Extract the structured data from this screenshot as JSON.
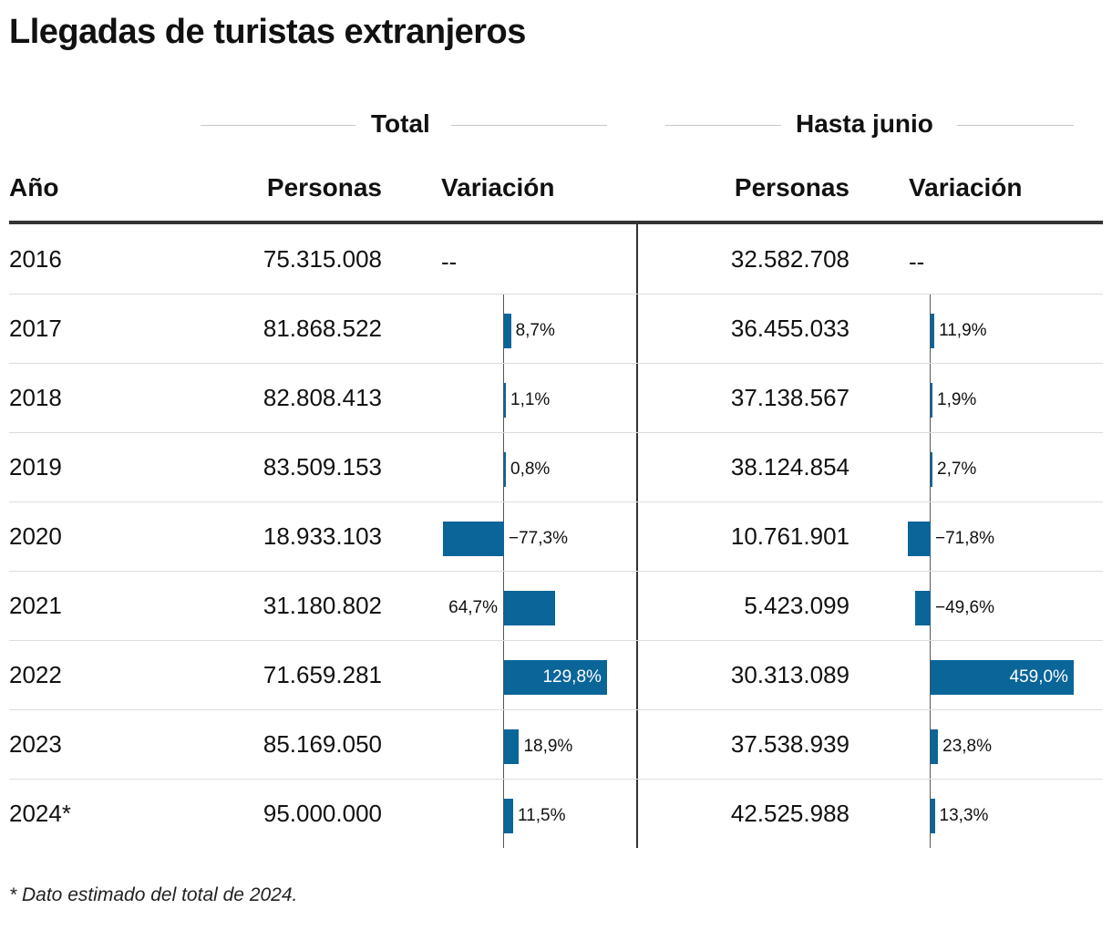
{
  "title": "Llegadas de turistas extranjeros",
  "groups": {
    "total": "Total",
    "junio": "Hasta junio"
  },
  "headers": {
    "year": "Año",
    "personas_total": "Personas",
    "variacion_total": "Variación",
    "personas_junio": "Personas",
    "variacion_junio": "Variación"
  },
  "footnote": "* Dato estimado del total de 2024.",
  "colors": {
    "bar": "#0a6599"
  },
  "chart_data": {
    "type": "table",
    "title": "Llegadas de turistas extranjeros",
    "rows": [
      {
        "year": "2016",
        "total": "75.315.008",
        "var_total": null,
        "var_total_label": "--",
        "junio": "32.582.708",
        "var_junio": null,
        "var_junio_label": "--"
      },
      {
        "year": "2017",
        "total": "81.868.522",
        "var_total": 8.7,
        "var_total_label": "8,7%",
        "junio": "36.455.033",
        "var_junio": 11.9,
        "var_junio_label": "11,9%"
      },
      {
        "year": "2018",
        "total": "82.808.413",
        "var_total": 1.1,
        "var_total_label": "1,1%",
        "junio": "37.138.567",
        "var_junio": 1.9,
        "var_junio_label": "1,9%"
      },
      {
        "year": "2019",
        "total": "83.509.153",
        "var_total": 0.8,
        "var_total_label": "0,8%",
        "junio": "38.124.854",
        "var_junio": 2.7,
        "var_junio_label": "2,7%"
      },
      {
        "year": "2020",
        "total": "18.933.103",
        "var_total": -77.3,
        "var_total_label": "−77,3%",
        "junio": "10.761.901",
        "var_junio": -71.8,
        "var_junio_label": "−71,8%"
      },
      {
        "year": "2021",
        "total": "31.180.802",
        "var_total": 64.7,
        "var_total_label": "64,7%",
        "junio": "5.423.099",
        "var_junio": -49.6,
        "var_junio_label": "−49,6%"
      },
      {
        "year": "2022",
        "total": "71.659.281",
        "var_total": 129.8,
        "var_total_label": "129,8%",
        "junio": "30.313.089",
        "var_junio": 459.0,
        "var_junio_label": "459,0%"
      },
      {
        "year": "2023",
        "total": "85.169.050",
        "var_total": 18.9,
        "var_total_label": "18,9%",
        "junio": "37.538.939",
        "var_junio": 23.8,
        "var_junio_label": "23,8%"
      },
      {
        "year": "2024*",
        "total": "95.000.000",
        "var_total": 11.5,
        "var_total_label": "11,5%",
        "junio": "42.525.988",
        "var_junio": 13.3,
        "var_junio_label": "13,3%"
      }
    ]
  }
}
